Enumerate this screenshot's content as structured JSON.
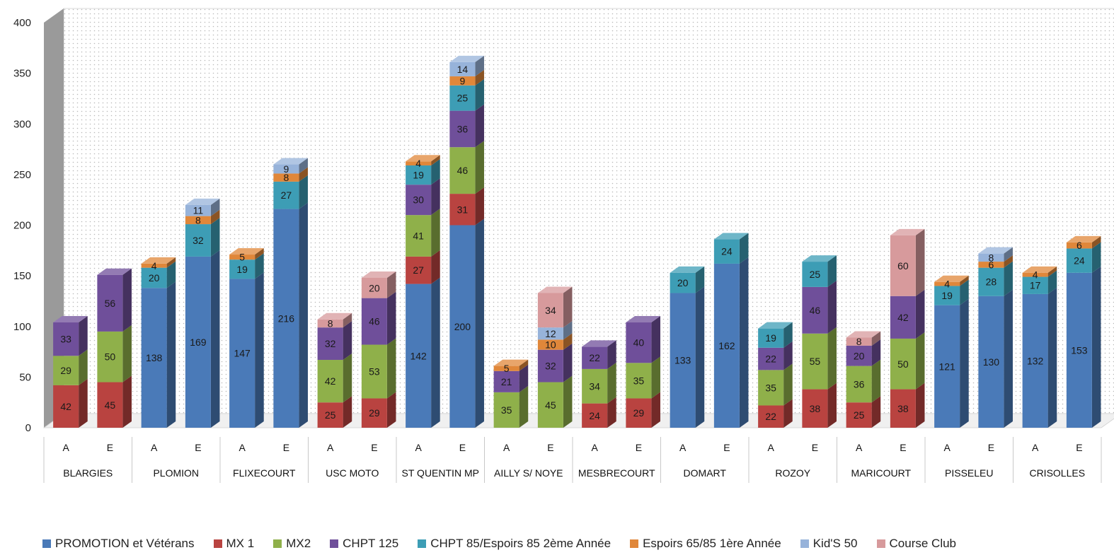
{
  "chart_data": {
    "type": "bar",
    "stacked": true,
    "three_d": true,
    "y_axis": {
      "min": 0,
      "max": 400,
      "ticks": [
        0,
        50,
        100,
        150,
        200,
        250,
        300,
        350,
        400
      ]
    },
    "grid": false,
    "legend_position": "bottom",
    "series": [
      {
        "name": "PROMOTION et Vétérans",
        "color": "#4a7ab8"
      },
      {
        "name": "MX 1",
        "color": "#b94340"
      },
      {
        "name": "MX2",
        "color": "#8fb04a"
      },
      {
        "name": "CHPT 125",
        "color": "#6f4f9a"
      },
      {
        "name": "CHPT 85/Espoirs 85 2ème Année",
        "color": "#3d9db5"
      },
      {
        "name": "Espoirs 65/85 1ère Année",
        "color": "#e0873a"
      },
      {
        "name": "Kid'S 50",
        "color": "#97b3da"
      },
      {
        "name": "Course Club",
        "color": "#d79a9c"
      }
    ],
    "categories": [
      {
        "name": "BLARGIES",
        "bars": [
          {
            "label": "A",
            "values": [
              null,
              42,
              29,
              33,
              null,
              null,
              null,
              null
            ]
          },
          {
            "label": "E",
            "values": [
              null,
              45,
              50,
              56,
              null,
              null,
              null,
              null
            ]
          }
        ]
      },
      {
        "name": "PLOMION",
        "bars": [
          {
            "label": "A",
            "values": [
              138,
              null,
              null,
              null,
              20,
              4,
              null,
              null
            ]
          },
          {
            "label": "E",
            "values": [
              169,
              null,
              null,
              null,
              32,
              8,
              11,
              null
            ]
          }
        ]
      },
      {
        "name": "FLIXECOURT",
        "bars": [
          {
            "label": "A",
            "values": [
              147,
              null,
              null,
              null,
              19,
              5,
              null,
              null
            ]
          },
          {
            "label": "E",
            "values": [
              216,
              null,
              null,
              null,
              27,
              8,
              9,
              null
            ]
          }
        ]
      },
      {
        "name": "USC MOTO",
        "bars": [
          {
            "label": "A",
            "values": [
              null,
              25,
              42,
              32,
              null,
              null,
              null,
              8
            ]
          },
          {
            "label": "E",
            "values": [
              null,
              29,
              53,
              46,
              null,
              null,
              null,
              20
            ]
          }
        ]
      },
      {
        "name": "ST QUENTIN MP",
        "bars": [
          {
            "label": "A",
            "values": [
              142,
              27,
              41,
              30,
              19,
              4,
              null,
              null
            ]
          },
          {
            "label": "E",
            "values": [
              200,
              31,
              46,
              36,
              25,
              9,
              14,
              null
            ]
          }
        ]
      },
      {
        "name": "AILLY S/ NOYE",
        "bars": [
          {
            "label": "A",
            "values": [
              null,
              null,
              35,
              21,
              null,
              5,
              null,
              null
            ]
          },
          {
            "label": "E",
            "values": [
              null,
              null,
              45,
              32,
              null,
              10,
              12,
              34
            ]
          }
        ]
      },
      {
        "name": "MESBRECOURT",
        "bars": [
          {
            "label": "A",
            "values": [
              null,
              24,
              34,
              22,
              null,
              null,
              null,
              null
            ]
          },
          {
            "label": "E",
            "values": [
              null,
              29,
              35,
              40,
              null,
              null,
              null,
              null
            ]
          }
        ]
      },
      {
        "name": "DOMART",
        "bars": [
          {
            "label": "A",
            "values": [
              133,
              null,
              null,
              null,
              20,
              null,
              null,
              null
            ]
          },
          {
            "label": "E",
            "values": [
              162,
              null,
              null,
              null,
              24,
              null,
              null,
              null
            ]
          }
        ]
      },
      {
        "name": "ROZOY",
        "bars": [
          {
            "label": "A",
            "values": [
              null,
              22,
              35,
              22,
              19,
              null,
              null,
              null
            ]
          },
          {
            "label": "E",
            "values": [
              null,
              38,
              55,
              46,
              25,
              null,
              null,
              null
            ]
          }
        ]
      },
      {
        "name": "MARICOURT",
        "bars": [
          {
            "label": "A",
            "values": [
              null,
              25,
              36,
              20,
              null,
              null,
              null,
              8
            ]
          },
          {
            "label": "E",
            "values": [
              null,
              38,
              50,
              42,
              null,
              null,
              null,
              60
            ]
          }
        ]
      },
      {
        "name": "PISSELEU",
        "bars": [
          {
            "label": "A",
            "values": [
              121,
              null,
              null,
              null,
              19,
              4,
              null,
              null
            ]
          },
          {
            "label": "E",
            "values": [
              130,
              null,
              null,
              null,
              28,
              6,
              8,
              null
            ]
          }
        ]
      },
      {
        "name": "CRISOLLES",
        "bars": [
          {
            "label": "A",
            "values": [
              132,
              null,
              null,
              null,
              17,
              4,
              null,
              null
            ]
          },
          {
            "label": "E",
            "values": [
              153,
              null,
              null,
              null,
              24,
              6,
              null,
              null
            ]
          }
        ]
      }
    ]
  }
}
